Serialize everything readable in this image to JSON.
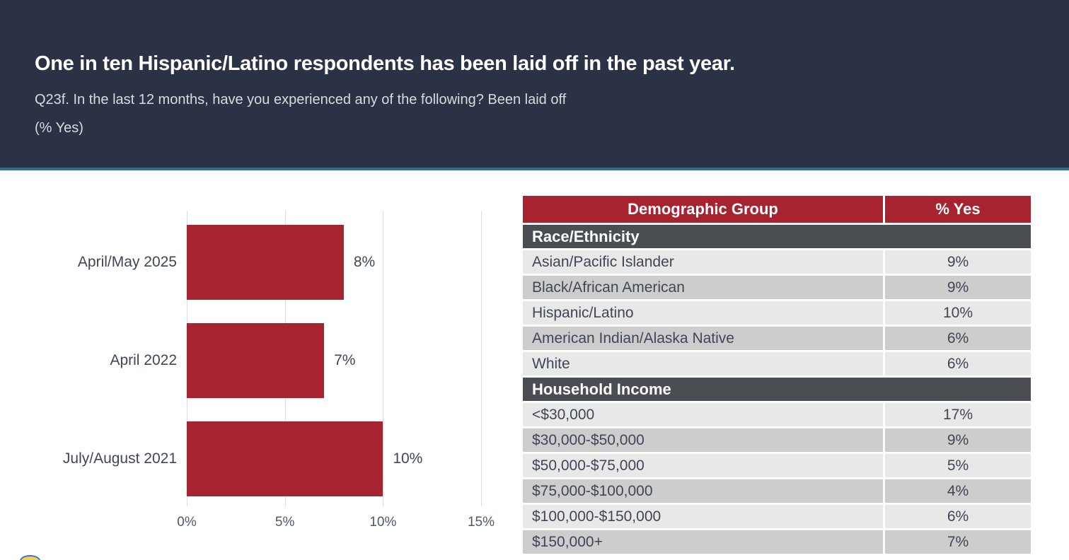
{
  "header": {
    "title": "One in ten Hispanic/Latino respondents has been laid off in the past year.",
    "subtitle": "Q23f. In the last 12 months, have you experienced any of the following? Been laid off",
    "note": "(% Yes)"
  },
  "chart_data": {
    "type": "bar",
    "orientation": "horizontal",
    "categories": [
      "April/May 2025",
      "April 2022",
      "July/August 2021"
    ],
    "values": [
      8,
      7,
      10
    ],
    "value_labels": [
      "8%",
      "7%",
      "10%"
    ],
    "xlim": [
      0,
      15
    ],
    "x_ticks": [
      "0%",
      "5%",
      "10%",
      "15%"
    ],
    "x_tick_values": [
      0,
      5,
      10,
      15
    ],
    "bar_color": "#a82330",
    "grid": true,
    "legend": "none",
    "title": "",
    "xlabel": "",
    "ylabel": ""
  },
  "table": {
    "columns": [
      "Demographic Group",
      "% Yes"
    ],
    "sections": [
      {
        "title": "Race/Ethnicity",
        "rows": [
          [
            "Asian/Pacific Islander",
            "9%"
          ],
          [
            "Black/African American",
            "9%"
          ],
          [
            "Hispanic/Latino",
            "10%"
          ],
          [
            "American Indian/Alaska Native",
            "6%"
          ],
          [
            "White",
            "6%"
          ]
        ]
      },
      {
        "title": "Household Income",
        "rows": [
          [
            "<$30,000",
            "17%"
          ],
          [
            "$30,000-$50,000",
            "9%"
          ],
          [
            "$50,000-$75,000",
            "5%"
          ],
          [
            "$75,000-$100,000",
            "4%"
          ],
          [
            "$100,000-$150,000",
            "6%"
          ],
          [
            "$150,000+",
            "7%"
          ]
        ]
      }
    ]
  },
  "colors": {
    "header_bg": "#2c3245",
    "accent_line": "#2f6e8d",
    "table_header_bg": "#a82330",
    "section_header_bg": "#4a4e53",
    "row_light": "#e8e8e8",
    "row_dark": "#cdcdcd",
    "text_dark": "#3f4654",
    "logo_blue": "#3e74c6",
    "logo_yellow": "#f4cf5c"
  }
}
